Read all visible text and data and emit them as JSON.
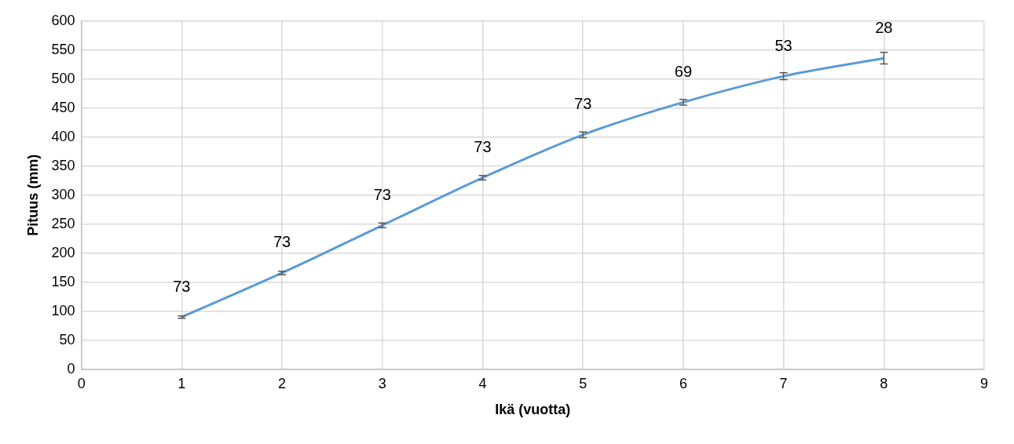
{
  "chart_data": {
    "type": "line",
    "xlabel": "Ikä (vuotta)",
    "ylabel": "Pituus (mm)",
    "x": [
      1,
      2,
      3,
      4,
      5,
      6,
      7,
      8
    ],
    "series": [
      {
        "color": "#5b9bd5",
        "values": [
          90,
          166,
          248,
          330,
          404,
          460,
          505,
          536
        ],
        "errors": [
          2,
          3,
          4,
          4,
          5,
          5,
          6,
          10
        ]
      }
    ],
    "annotations": [
      {
        "text": "73",
        "x": 1,
        "y": 90
      },
      {
        "text": "73",
        "x": 2,
        "y": 166
      },
      {
        "text": "73",
        "x": 3,
        "y": 248
      },
      {
        "text": "73",
        "x": 4,
        "y": 330
      },
      {
        "text": "73",
        "x": 5,
        "y": 404
      },
      {
        "text": "69",
        "x": 6,
        "y": 460
      },
      {
        "text": "53",
        "x": 7,
        "y": 505
      },
      {
        "text": "28",
        "x": 8,
        "y": 536
      }
    ],
    "xlim": [
      0,
      9
    ],
    "xticks": [
      0,
      1,
      2,
      3,
      4,
      5,
      6,
      7,
      8,
      9
    ],
    "ylim": [
      0,
      600
    ],
    "yticks": [
      0,
      50,
      100,
      150,
      200,
      250,
      300,
      350,
      400,
      450,
      500,
      550,
      600
    ],
    "grid": true,
    "legend": false,
    "line_style": "solid"
  }
}
